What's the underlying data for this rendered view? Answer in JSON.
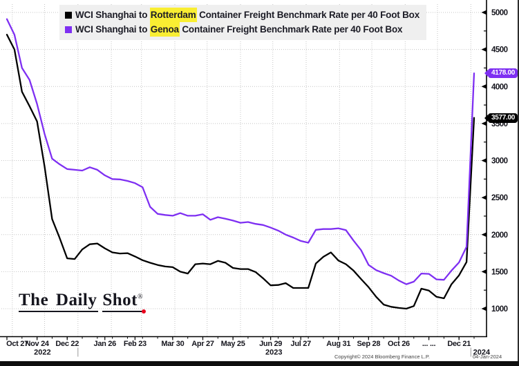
{
  "colors": {
    "rotterdam_line": "#000000",
    "genoa_line": "#7e2ff2",
    "highlight_yellow": "#f9ee32",
    "legend_background": "#efefef",
    "grid_gray": "#c4c4c4",
    "axis_black": "#000000",
    "red_dot": "#e8001c"
  },
  "legend": {
    "entries": [
      {
        "prefix": "WCI Shanghai to ",
        "highlight": "Rotterdam",
        "suffix": " Container Freight Benchmark Rate per 40 Foot Box",
        "swatch_color": "#000000"
      },
      {
        "prefix": "WCI Shanghai to ",
        "highlight": "Genoa",
        "suffix": " Container Freight Benchmark Rate per 40 Foot Box",
        "swatch_color": "#7e2ff2"
      }
    ]
  },
  "badges": [
    {
      "label": "4178.00",
      "value": 4178,
      "color": "#7e2ff2"
    },
    {
      "label": "3577.00",
      "value": 3577,
      "color": "#000000"
    }
  ],
  "watermark": {
    "part1": "The Daily",
    "part2": "Shot",
    "reg": "®"
  },
  "footer": {
    "copyright": "Copyright© 2024 Bloomberg Finance L.P.",
    "date": "04-Jan-2024"
  },
  "y_axis": {
    "major_ticks": [
      5000,
      4500,
      4000,
      3500,
      3000,
      2500,
      2000,
      1500,
      1000
    ],
    "minor_ticks": [
      4750,
      4250,
      3750,
      3250,
      2750,
      2250,
      1750,
      1250
    ]
  },
  "x_axis": {
    "tick_labels": [
      {
        "label": "Oct 27",
        "week": 0
      },
      {
        "label": "Nov 24",
        "week": 4
      },
      {
        "label": "Dec 22",
        "week": 8
      },
      {
        "label": "Jan 26",
        "week": 13
      },
      {
        "label": "Feb 23",
        "week": 17
      },
      {
        "label": "Mar 30",
        "week": 22
      },
      {
        "label": "Apr 27",
        "week": 26
      },
      {
        "label": "May 25",
        "week": 30
      },
      {
        "label": "Jun 29",
        "week": 35
      },
      {
        "label": "Jul 27",
        "week": 39
      },
      {
        "label": "Aug 31",
        "week": 44
      },
      {
        "label": "Sep 28",
        "week": 48
      },
      {
        "label": "Oct 26",
        "week": 52
      },
      {
        "label": "... ...",
        "week": 56
      },
      {
        "label": "Dec 21",
        "week": 60
      }
    ],
    "years": [
      {
        "label": "2022",
        "center_day": 33
      },
      {
        "label": "2023",
        "center_day": 248
      },
      {
        "label": "2024",
        "center_day": 441
      }
    ],
    "year_separator_days": [
      66,
      431
    ]
  },
  "chart_data": {
    "type": "line",
    "title": "WCI Shanghai to Rotterdam / Genoa Container Freight Benchmark Rate per 40 Foot Box",
    "xlabel": "",
    "ylabel": "",
    "ylim": [
      620,
      5110
    ],
    "y_ticks": [
      1000,
      1500,
      2000,
      2500,
      3000,
      3500,
      4000,
      4500,
      5000
    ],
    "grid": "dotted",
    "legend_position": "top",
    "x_unit": "weekly",
    "x": [
      "2022-10-27",
      "2022-11-03",
      "2022-11-10",
      "2022-11-17",
      "2022-11-24",
      "2022-12-01",
      "2022-12-08",
      "2022-12-15",
      "2022-12-22",
      "2022-12-29",
      "2023-01-05",
      "2023-01-12",
      "2023-01-19",
      "2023-01-26",
      "2023-02-02",
      "2023-02-09",
      "2023-02-16",
      "2023-02-23",
      "2023-03-02",
      "2023-03-09",
      "2023-03-16",
      "2023-03-23",
      "2023-03-30",
      "2023-04-06",
      "2023-04-13",
      "2023-04-20",
      "2023-04-27",
      "2023-05-04",
      "2023-05-11",
      "2023-05-18",
      "2023-05-25",
      "2023-06-01",
      "2023-06-08",
      "2023-06-15",
      "2023-06-22",
      "2023-06-29",
      "2023-07-06",
      "2023-07-13",
      "2023-07-20",
      "2023-07-27",
      "2023-08-03",
      "2023-08-10",
      "2023-08-17",
      "2023-08-24",
      "2023-08-31",
      "2023-09-07",
      "2023-09-14",
      "2023-09-21",
      "2023-09-28",
      "2023-10-05",
      "2023-10-12",
      "2023-10-19",
      "2023-10-26",
      "2023-11-02",
      "2023-11-09",
      "2023-11-16",
      "2023-11-23",
      "2023-11-30",
      "2023-12-07",
      "2023-12-14",
      "2023-12-21",
      "2023-12-28",
      "2024-01-04"
    ],
    "series": [
      {
        "name": "WCI Shanghai to Rotterdam Container Freight Benchmark Rate per 40 Foot Box",
        "color": "#000000",
        "last_value": 3577.0,
        "values": [
          4700,
          4500,
          3930,
          3735,
          3530,
          2920,
          2210,
          1955,
          1680,
          1670,
          1800,
          1870,
          1880,
          1815,
          1760,
          1745,
          1750,
          1705,
          1655,
          1620,
          1590,
          1570,
          1560,
          1500,
          1475,
          1600,
          1610,
          1600,
          1645,
          1620,
          1550,
          1535,
          1535,
          1495,
          1410,
          1315,
          1320,
          1345,
          1280,
          1280,
          1280,
          1610,
          1700,
          1760,
          1650,
          1600,
          1515,
          1400,
          1290,
          1160,
          1055,
          1025,
          1010,
          1000,
          1035,
          1270,
          1245,
          1160,
          1140,
          1330,
          1450,
          1630,
          3577
        ]
      },
      {
        "name": "WCI Shanghai to Genoa Container Freight Benchmark Rate per 40 Foot Box",
        "color": "#7e2ff2",
        "last_value": 4178.0,
        "values": [
          4910,
          4700,
          4250,
          4090,
          3765,
          3360,
          3025,
          2950,
          2885,
          2875,
          2865,
          2910,
          2875,
          2800,
          2750,
          2745,
          2725,
          2695,
          2640,
          2375,
          2280,
          2265,
          2255,
          2290,
          2255,
          2255,
          2275,
          2200,
          2235,
          2215,
          2190,
          2160,
          2170,
          2145,
          2130,
          2095,
          2055,
          2000,
          1960,
          1915,
          1890,
          2065,
          2075,
          2075,
          2085,
          2060,
          1920,
          1790,
          1590,
          1520,
          1480,
          1445,
          1380,
          1330,
          1365,
          1475,
          1470,
          1395,
          1390,
          1515,
          1625,
          1835,
          4178
        ]
      }
    ]
  }
}
